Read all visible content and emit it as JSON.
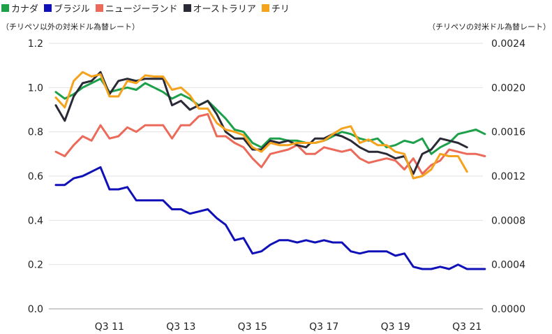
{
  "legend": [
    {
      "name": "カナダ",
      "color": "#1ca04a"
    },
    {
      "name": "ブラジル",
      "color": "#1010b8"
    },
    {
      "name": "ニュージーランド",
      "color": "#ec6a5a"
    },
    {
      "name": "オーストラリア",
      "color": "#2a2a36"
    },
    {
      "name": "チリ",
      "color": "#f5a21c"
    }
  ],
  "chart_data": {
    "type": "line",
    "left_axis_title": "（チリペソ以外の対米ドル為替レート）",
    "right_axis_title": "（チリペソの対米ドル為替レート）",
    "y_left": {
      "range": [
        0,
        1.2
      ],
      "ticks": [
        "0.0",
        "0.2",
        "0.4",
        "0.6",
        "0.8",
        "1.0",
        "1.2"
      ]
    },
    "y_right": {
      "range": [
        0,
        0.0024
      ],
      "ticks": [
        "0.0000",
        "0.0004",
        "0.0008",
        "0.0012",
        "0.0016",
        "0.0020",
        "0.0024"
      ]
    },
    "x_tick_labels": [
      "Q3 11",
      "Q3 13",
      "Q3 15",
      "Q3 17",
      "Q3 19",
      "Q3 21"
    ],
    "x_tick_index": [
      6,
      14,
      22,
      30,
      38,
      46
    ],
    "grid": "horizontal",
    "series": [
      {
        "name": "カナダ",
        "axis": "left",
        "color": "#1ca04a",
        "values": [
          0.98,
          0.95,
          0.97,
          1.0,
          1.02,
          1.04,
          0.98,
          0.99,
          1.0,
          0.99,
          1.02,
          1.0,
          0.98,
          0.95,
          0.97,
          0.95,
          0.92,
          0.94,
          0.9,
          0.86,
          0.81,
          0.8,
          0.75,
          0.73,
          0.77,
          0.77,
          0.76,
          0.76,
          0.75,
          0.75,
          0.76,
          0.78,
          0.8,
          0.79,
          0.77,
          0.76,
          0.77,
          0.73,
          0.74,
          0.76,
          0.75,
          0.77,
          0.7,
          0.73,
          0.75,
          0.79,
          0.8,
          0.81,
          0.79
        ]
      },
      {
        "name": "ブラジル",
        "axis": "left",
        "color": "#1010b8",
        "values": [
          0.56,
          0.56,
          0.59,
          0.6,
          0.62,
          0.64,
          0.54,
          0.54,
          0.55,
          0.49,
          0.49,
          0.49,
          0.49,
          0.45,
          0.45,
          0.43,
          0.44,
          0.45,
          0.41,
          0.38,
          0.31,
          0.32,
          0.25,
          0.26,
          0.29,
          0.31,
          0.31,
          0.3,
          0.31,
          0.3,
          0.31,
          0.3,
          0.3,
          0.26,
          0.25,
          0.26,
          0.26,
          0.26,
          0.24,
          0.25,
          0.19,
          0.18,
          0.18,
          0.19,
          0.18,
          0.2,
          0.18,
          0.18,
          0.18
        ]
      },
      {
        "name": "ニュージーランド",
        "axis": "left",
        "color": "#ec6a5a",
        "values": [
          0.71,
          0.69,
          0.74,
          0.78,
          0.76,
          0.83,
          0.77,
          0.78,
          0.82,
          0.8,
          0.83,
          0.83,
          0.83,
          0.77,
          0.83,
          0.83,
          0.87,
          0.88,
          0.78,
          0.78,
          0.75,
          0.73,
          0.68,
          0.64,
          0.7,
          0.71,
          0.72,
          0.74,
          0.7,
          0.7,
          0.73,
          0.72,
          0.71,
          0.72,
          0.68,
          0.66,
          0.67,
          0.68,
          0.67,
          0.63,
          0.68,
          0.61,
          0.65,
          0.67,
          0.72,
          0.71,
          0.7,
          0.7,
          0.69
        ]
      },
      {
        "name": "オーストラリア",
        "axis": "left",
        "color": "#2a2a36",
        "values": [
          0.92,
          0.85,
          0.96,
          1.02,
          1.03,
          1.07,
          0.97,
          1.03,
          1.04,
          1.03,
          1.04,
          1.04,
          1.04,
          0.92,
          0.94,
          0.9,
          0.92,
          0.94,
          0.88,
          0.8,
          0.77,
          0.77,
          0.72,
          0.72,
          0.76,
          0.75,
          0.76,
          0.74,
          0.73,
          0.77,
          0.77,
          0.79,
          0.78,
          0.76,
          0.73,
          0.71,
          0.71,
          0.7,
          0.68,
          0.69,
          0.61,
          0.7,
          0.72,
          0.77,
          0.76,
          0.75,
          0.73
        ]
      },
      {
        "name": "チリ",
        "axis": "right",
        "color": "#f5a21c",
        "values": [
          0.00191,
          0.00182,
          0.00206,
          0.00214,
          0.0021,
          0.00212,
          0.00192,
          0.00192,
          0.00206,
          0.00204,
          0.00211,
          0.0021,
          0.0021,
          0.00198,
          0.002,
          0.00193,
          0.00181,
          0.00181,
          0.00168,
          0.00162,
          0.0016,
          0.00157,
          0.00146,
          0.00142,
          0.0015,
          0.00148,
          0.00148,
          0.0015,
          0.0015,
          0.0015,
          0.00152,
          0.00158,
          0.00163,
          0.00165,
          0.0015,
          0.00153,
          0.00148,
          0.00148,
          0.00142,
          0.0014,
          0.00118,
          0.0012,
          0.00126,
          0.0014,
          0.00138,
          0.00138,
          0.00124
        ]
      }
    ]
  }
}
